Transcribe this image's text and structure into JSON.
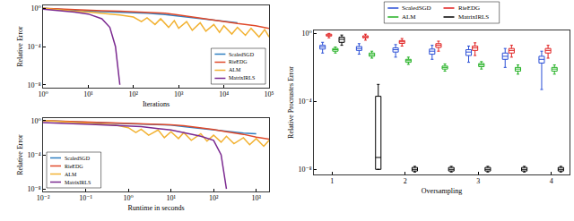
{
  "chart_data": [
    {
      "type": "line",
      "xlabel": "Iterations",
      "ylabel": "Relative Error",
      "log": true,
      "grid": false,
      "legend": "lower right",
      "xlim": [
        1,
        100000
      ],
      "ylim": [
        5e-09,
        2
      ],
      "xticks": [
        {
          "value": 1,
          "label": "10⁰"
        },
        {
          "value": 10,
          "label": "10¹"
        },
        {
          "value": 100,
          "label": "10²"
        },
        {
          "value": 1000,
          "label": "10³"
        },
        {
          "value": 10000,
          "label": "10⁴"
        },
        {
          "value": 100000,
          "label": "10⁵"
        }
      ],
      "yticks": [
        {
          "value": 1,
          "label": "10⁰"
        },
        {
          "value": 0.0001,
          "label": "10⁻⁴"
        },
        {
          "value": 1e-08,
          "label": "10⁻⁸"
        }
      ],
      "series": [
        {
          "name": "ScaledSGD",
          "color": "#2f7fc1",
          "x": [
            1,
            2,
            5,
            10,
            20,
            50,
            100,
            200,
            500,
            1000,
            2000,
            5000,
            10000,
            20000
          ],
          "values": [
            1,
            0.8,
            0.6,
            0.5,
            0.45,
            0.4,
            0.35,
            0.3,
            0.22,
            0.15,
            0.1,
            0.06,
            0.04,
            0.03
          ]
        },
        {
          "name": "RieEDG",
          "color": "#e0492a",
          "x": [
            1,
            2,
            5,
            10,
            20,
            50,
            100,
            200,
            500,
            1000,
            2000,
            5000,
            10000,
            20000,
            50000,
            100000
          ],
          "values": [
            1,
            0.85,
            0.7,
            0.6,
            0.55,
            0.5,
            0.45,
            0.4,
            0.3,
            0.2,
            0.12,
            0.07,
            0.04,
            0.025,
            0.015,
            0.008
          ]
        },
        {
          "name": "ALM",
          "color": "#f2b233",
          "x": [
            1,
            2,
            5,
            10,
            20,
            50,
            100,
            150,
            200,
            300,
            400,
            600,
            800,
            1000,
            1500,
            2000,
            3000,
            4000,
            6000,
            8000,
            10000,
            15000,
            20000,
            30000,
            40000,
            60000,
            80000,
            100000
          ],
          "values": [
            1,
            0.7,
            0.5,
            0.4,
            0.3,
            0.2,
            0.12,
            0.04,
            0.1,
            0.02,
            0.08,
            0.01,
            0.05,
            0.008,
            0.04,
            0.005,
            0.03,
            0.004,
            0.02,
            0.003,
            0.015,
            0.002,
            0.01,
            0.0015,
            0.008,
            0.001,
            0.006,
            0.001
          ]
        },
        {
          "name": "MatrixIRLS",
          "color": "#7b2a90",
          "x": [
            1,
            2,
            5,
            10,
            20,
            30,
            40,
            50
          ],
          "values": [
            0.8,
            0.6,
            0.4,
            0.25,
            0.08,
            0.01,
            0.0001,
            1e-08
          ]
        }
      ]
    },
    {
      "type": "line",
      "xlabel": "Runtime in seconds",
      "ylabel": "Relative Error",
      "log": true,
      "grid": false,
      "legend": "lower left",
      "xlim": [
        0.01,
        2000
      ],
      "ylim": [
        5e-09,
        2
      ],
      "xticks": [
        {
          "value": 0.01,
          "label": "10⁻²"
        },
        {
          "value": 0.1,
          "label": "10⁻¹"
        },
        {
          "value": 1,
          "label": "10⁰"
        },
        {
          "value": 10,
          "label": "10¹"
        },
        {
          "value": 100,
          "label": "10²"
        },
        {
          "value": 1000,
          "label": "10³"
        }
      ],
      "yticks": [
        {
          "value": 1,
          "label": "10⁰"
        },
        {
          "value": 0.0001,
          "label": "10⁻⁴"
        },
        {
          "value": 1e-08,
          "label": "10⁻⁸"
        }
      ],
      "series": [
        {
          "name": "ScaledSGD",
          "color": "#2f7fc1",
          "x": [
            0.01,
            0.02,
            0.05,
            0.1,
            0.2,
            0.5,
            1,
            2,
            5,
            10,
            20,
            50,
            100,
            200,
            500,
            1000
          ],
          "values": [
            1,
            0.85,
            0.7,
            0.6,
            0.55,
            0.5,
            0.45,
            0.4,
            0.35,
            0.3,
            0.2,
            0.12,
            0.08,
            0.05,
            0.035,
            0.03
          ]
        },
        {
          "name": "RieEDG",
          "color": "#e0492a",
          "x": [
            0.01,
            0.02,
            0.05,
            0.1,
            0.2,
            0.5,
            1,
            2,
            5,
            10,
            20,
            50,
            100,
            200,
            500,
            1000,
            2000
          ],
          "values": [
            1,
            0.9,
            0.75,
            0.65,
            0.6,
            0.55,
            0.5,
            0.45,
            0.4,
            0.33,
            0.25,
            0.15,
            0.09,
            0.05,
            0.025,
            0.012,
            0.007
          ]
        },
        {
          "name": "ALM",
          "color": "#f2b233",
          "x": [
            0.01,
            0.02,
            0.05,
            0.1,
            0.2,
            0.5,
            1,
            1.5,
            2,
            3,
            5,
            7,
            10,
            15,
            20,
            30,
            50,
            70,
            100,
            150,
            200,
            300,
            500,
            700,
            1000,
            1500,
            2000
          ],
          "values": [
            1,
            0.8,
            0.6,
            0.5,
            0.4,
            0.3,
            0.15,
            0.04,
            0.1,
            0.02,
            0.08,
            0.01,
            0.05,
            0.008,
            0.04,
            0.005,
            0.03,
            0.004,
            0.02,
            0.003,
            0.015,
            0.002,
            0.01,
            0.0015,
            0.008,
            0.001,
            0.005
          ]
        },
        {
          "name": "MatrixIRLS",
          "color": "#7b2a90",
          "x": [
            0.01,
            0.02,
            0.05,
            0.1,
            0.2,
            0.5,
            1,
            2,
            5,
            10,
            20,
            50,
            100,
            150,
            200
          ],
          "values": [
            0.6,
            0.5,
            0.45,
            0.4,
            0.35,
            0.3,
            0.25,
            0.2,
            0.12,
            0.08,
            0.04,
            0.015,
            0.005,
            0.0001,
            1e-08
          ]
        }
      ]
    },
    {
      "type": "box",
      "xlabel": "Oversampling",
      "ylabel": "Relative Procrustes Error",
      "log": "y",
      "grid": false,
      "legend": "top",
      "xlim": [
        0.75,
        4.25
      ],
      "ylim": [
        5e-09,
        1.5
      ],
      "xticks": [
        1,
        2,
        3,
        4
      ],
      "yticks": [
        {
          "value": 1,
          "label": "10⁰"
        },
        {
          "value": 0.0001,
          "label": "10⁻⁴"
        },
        {
          "value": 1e-08,
          "label": "10⁻⁸"
        }
      ],
      "series": [
        {
          "name": "ScaledSGD",
          "color": "#2b4fd6",
          "x": [
            1,
            1.5,
            2,
            2.5,
            3,
            3.5,
            4
          ],
          "q1": [
            0.12,
            0.1,
            0.08,
            0.06,
            0.05,
            0.03,
            0.018
          ],
          "median": [
            0.16,
            0.13,
            0.11,
            0.09,
            0.08,
            0.045,
            0.03
          ],
          "q3": [
            0.2,
            0.17,
            0.14,
            0.12,
            0.11,
            0.07,
            0.045
          ],
          "lowerfence": [
            0.07,
            0.06,
            0.04,
            0.03,
            0.02,
            0.01,
            0.0005
          ],
          "upperfence": [
            0.3,
            0.25,
            0.22,
            0.2,
            0.18,
            0.13,
            0.09
          ]
        },
        {
          "name": "RieEDG",
          "color": "#e02020",
          "x": [
            1,
            1.5,
            2,
            2.5,
            3,
            3.5,
            4
          ],
          "q1": [
            0.7,
            0.55,
            0.26,
            0.15,
            0.1,
            0.07,
            0.07
          ],
          "median": [
            0.8,
            0.63,
            0.32,
            0.2,
            0.14,
            0.1,
            0.1
          ],
          "q3": [
            0.9,
            0.72,
            0.38,
            0.25,
            0.18,
            0.13,
            0.13
          ],
          "lowerfence": [
            0.55,
            0.4,
            0.18,
            0.09,
            0.05,
            0.04,
            0.035
          ],
          "upperfence": [
            1,
            0.9,
            0.5,
            0.35,
            0.28,
            0.2,
            0.2
          ]
        },
        {
          "name": "ALM",
          "color": "#22b022",
          "x": [
            1,
            1.5,
            2,
            2.5,
            3,
            3.5,
            4
          ],
          "q1": [
            0.09,
            0.045,
            0.02,
            0.008,
            0.011,
            0.006,
            0.006
          ],
          "median": [
            0.11,
            0.056,
            0.025,
            0.01,
            0.014,
            0.008,
            0.008
          ],
          "q3": [
            0.13,
            0.07,
            0.03,
            0.012,
            0.017,
            0.01,
            0.01
          ],
          "lowerfence": [
            0.07,
            0.035,
            0.015,
            0.006,
            0.008,
            0.004,
            0.004
          ],
          "upperfence": [
            0.16,
            0.09,
            0.04,
            0.016,
            0.022,
            0.014,
            0.014
          ]
        },
        {
          "name": "MatrixIRLS",
          "color": "#000000",
          "x": [
            1,
            1.5,
            2,
            2.5,
            3,
            3.5,
            4
          ],
          "q1": [
            0.3,
            1e-08,
            8e-09,
            8e-09,
            8e-09,
            8e-09,
            8e-09
          ],
          "median": [
            0.45,
            5e-08,
            1e-08,
            1e-08,
            1e-08,
            1e-08,
            1e-08
          ],
          "q3": [
            0.6,
            0.0002,
            1.3e-08,
            1.3e-08,
            1.3e-08,
            1.3e-08,
            1.3e-08
          ],
          "lowerfence": [
            0.2,
            1e-08,
            7e-09,
            7e-09,
            7e-09,
            7e-09,
            7e-09
          ],
          "upperfence": [
            0.8,
            0.001,
            1.5e-08,
            1.5e-08,
            1.5e-08,
            1.5e-08,
            1.5e-08
          ]
        }
      ]
    }
  ]
}
